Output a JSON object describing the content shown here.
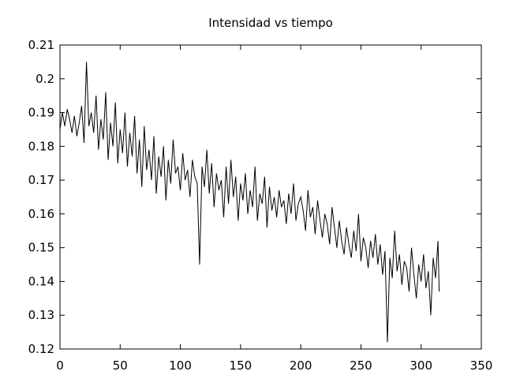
{
  "chart_data": {
    "type": "line",
    "title": "Intensidad vs tiempo",
    "xlabel": "",
    "ylabel": "",
    "xlim": [
      0,
      350
    ],
    "ylim": [
      0.12,
      0.21
    ],
    "x_ticks": [
      0,
      50,
      100,
      150,
      200,
      250,
      300,
      350
    ],
    "x_tick_labels": [
      "0",
      "50",
      "100",
      "150",
      "200",
      "250",
      "300",
      "350"
    ],
    "y_ticks": [
      0.12,
      0.13,
      0.14,
      0.15,
      0.16,
      0.17,
      0.18,
      0.19,
      0.2,
      0.21
    ],
    "y_tick_labels": [
      "0.12",
      "0.13",
      "0.14",
      "0.15",
      "0.16",
      "0.17",
      "0.18",
      "0.19",
      "0.2",
      "0.21"
    ],
    "grid": false,
    "legend": "none",
    "series": [
      {
        "color": "#000000",
        "x": [
          0,
          2,
          4,
          6,
          8,
          10,
          12,
          14,
          16,
          18,
          20,
          22,
          24,
          26,
          28,
          30,
          32,
          34,
          36,
          38,
          40,
          42,
          44,
          46,
          48,
          50,
          52,
          54,
          56,
          58,
          60,
          62,
          64,
          66,
          68,
          70,
          72,
          74,
          76,
          78,
          80,
          82,
          84,
          86,
          88,
          90,
          92,
          94,
          96,
          98,
          100,
          102,
          104,
          106,
          108,
          110,
          112,
          114,
          116,
          118,
          120,
          122,
          124,
          126,
          128,
          130,
          132,
          134,
          136,
          138,
          140,
          142,
          144,
          146,
          148,
          150,
          152,
          154,
          156,
          158,
          160,
          162,
          164,
          166,
          168,
          170,
          172,
          174,
          176,
          178,
          180,
          182,
          184,
          186,
          188,
          190,
          192,
          194,
          196,
          198,
          200,
          202,
          204,
          206,
          208,
          210,
          212,
          214,
          216,
          218,
          220,
          222,
          224,
          226,
          228,
          230,
          232,
          234,
          236,
          238,
          240,
          242,
          244,
          246,
          248,
          250,
          252,
          254,
          256,
          258,
          260,
          262,
          264,
          266,
          268,
          270,
          272,
          274,
          276,
          278,
          280,
          282,
          284,
          286,
          288,
          290,
          292,
          294,
          296,
          298,
          300,
          302,
          304,
          306,
          308,
          310,
          312,
          314,
          315
        ],
        "y": [
          0.185,
          0.19,
          0.186,
          0.191,
          0.188,
          0.184,
          0.189,
          0.183,
          0.187,
          0.192,
          0.181,
          0.205,
          0.186,
          0.19,
          0.184,
          0.195,
          0.179,
          0.188,
          0.182,
          0.196,
          0.176,
          0.187,
          0.18,
          0.193,
          0.175,
          0.185,
          0.178,
          0.19,
          0.174,
          0.184,
          0.177,
          0.189,
          0.172,
          0.182,
          0.168,
          0.186,
          0.173,
          0.179,
          0.17,
          0.183,
          0.166,
          0.177,
          0.171,
          0.18,
          0.164,
          0.176,
          0.169,
          0.182,
          0.172,
          0.174,
          0.167,
          0.178,
          0.17,
          0.173,
          0.165,
          0.176,
          0.171,
          0.169,
          0.145,
          0.174,
          0.168,
          0.179,
          0.166,
          0.175,
          0.162,
          0.172,
          0.167,
          0.17,
          0.159,
          0.174,
          0.163,
          0.176,
          0.165,
          0.171,
          0.158,
          0.169,
          0.164,
          0.172,
          0.16,
          0.167,
          0.162,
          0.174,
          0.158,
          0.166,
          0.163,
          0.171,
          0.156,
          0.168,
          0.161,
          0.165,
          0.159,
          0.167,
          0.162,
          0.164,
          0.157,
          0.166,
          0.16,
          0.169,
          0.158,
          0.163,
          0.165,
          0.161,
          0.155,
          0.167,
          0.159,
          0.162,
          0.154,
          0.164,
          0.158,
          0.153,
          0.16,
          0.157,
          0.151,
          0.162,
          0.156,
          0.15,
          0.158,
          0.152,
          0.148,
          0.156,
          0.151,
          0.147,
          0.155,
          0.149,
          0.16,
          0.146,
          0.153,
          0.15,
          0.144,
          0.152,
          0.147,
          0.154,
          0.145,
          0.151,
          0.142,
          0.149,
          0.122,
          0.147,
          0.141,
          0.155,
          0.143,
          0.148,
          0.139,
          0.146,
          0.144,
          0.137,
          0.15,
          0.142,
          0.135,
          0.145,
          0.14,
          0.148,
          0.138,
          0.143,
          0.13,
          0.147,
          0.141,
          0.152,
          0.137
        ]
      }
    ]
  }
}
